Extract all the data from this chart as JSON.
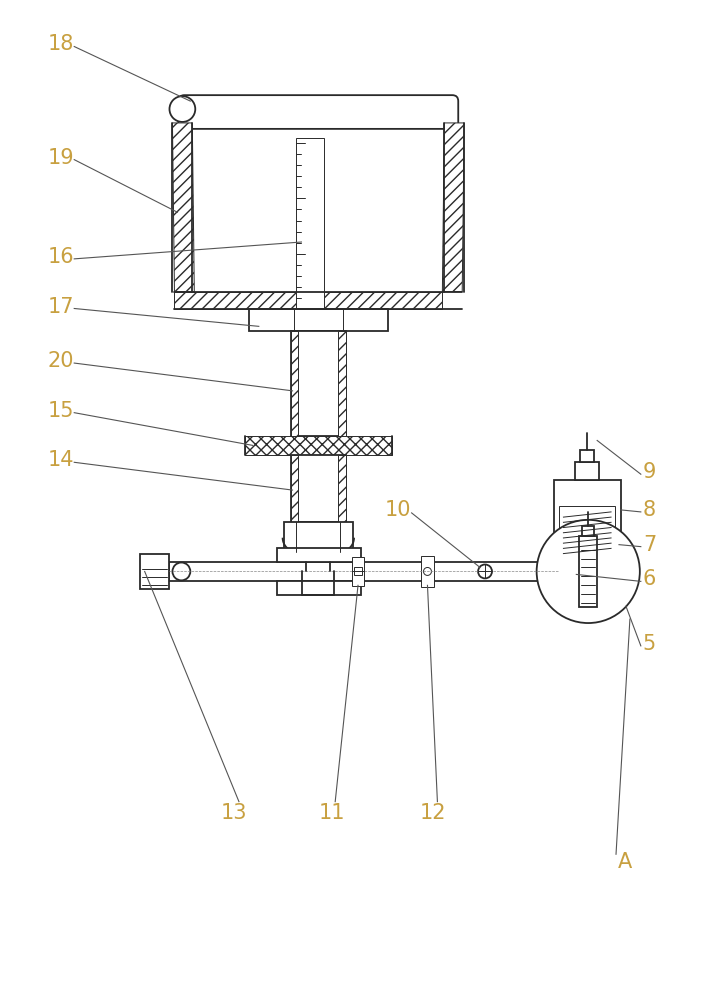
{
  "bg_color": "#ffffff",
  "line_color": "#2a2a2a",
  "label_color": "#c8a040",
  "lw": 1.3,
  "thin_lw": 0.7,
  "annotation_lw": 0.8
}
